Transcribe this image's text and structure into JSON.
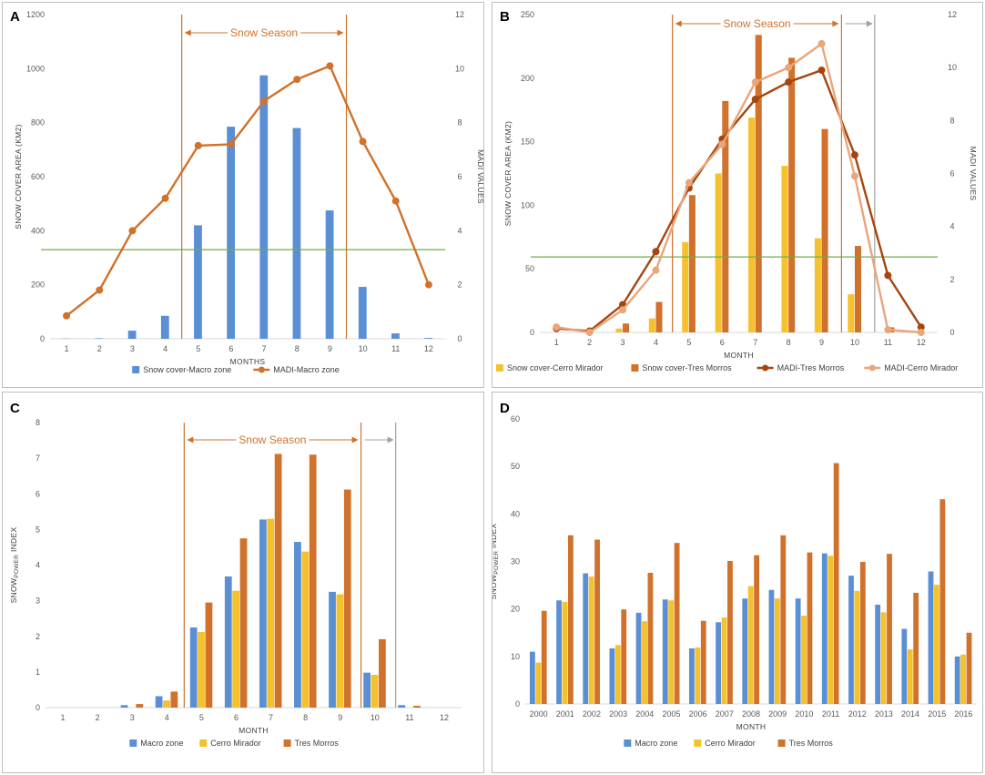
{
  "colors": {
    "macro": "#4f81bd",
    "macro_fill": "#5b8fd4",
    "cerro": "#f5c12c",
    "tres": "#d0722c",
    "madi_macro": "#d0722c",
    "madi_tres": "#a5460f",
    "madi_cerro": "#e8a67a",
    "threshold": "#70ad47",
    "season": "#d0722c",
    "grey": "#a0a0a0",
    "grid": "#e6e6e6"
  },
  "chart_data": [
    {
      "id": "A",
      "letter": "A",
      "type": "bar+line",
      "xlabel": "MONTHS",
      "ylabel": "SNOW COVER AREA (KM2)",
      "y2label": "MADI VALUES",
      "categories": [
        "1",
        "2",
        "3",
        "4",
        "5",
        "6",
        "7",
        "8",
        "9",
        "10",
        "11",
        "12"
      ],
      "ylim": [
        0,
        1200
      ],
      "yticks": [
        0,
        200,
        400,
        600,
        800,
        1000,
        1200
      ],
      "y2lim": [
        0,
        12
      ],
      "y2ticks": [
        0,
        2,
        4,
        6,
        8,
        10,
        12
      ],
      "bar_series": [
        {
          "name": "Snow cover-Macro zone",
          "color_key": "macro_fill",
          "values": [
            1,
            2,
            30,
            85,
            420,
            785,
            975,
            780,
            475,
            192,
            20,
            3
          ]
        }
      ],
      "line_series": [
        {
          "name": "MADI-Macro zone",
          "color_key": "madi_macro",
          "values": [
            0.85,
            1.8,
            4.0,
            5.2,
            7.15,
            7.2,
            8.8,
            9.6,
            10.1,
            7.3,
            5.1,
            2.0
          ]
        }
      ],
      "threshold_y2": 3.3,
      "season": {
        "label": "Snow Season",
        "start": 4.5,
        "end": 9.5,
        "extra_end": null
      },
      "legend": [
        "Snow cover-Macro zone",
        "MADI-Macro zone"
      ]
    },
    {
      "id": "B",
      "letter": "B",
      "type": "bar+line",
      "xlabel": "MONTH",
      "ylabel": "SNOW COVER AREA (KM2)",
      "y2label": "MADI VALUES",
      "categories": [
        "1",
        "2",
        "3",
        "4",
        "5",
        "6",
        "7",
        "8",
        "9",
        "10",
        "11",
        "12"
      ],
      "ylim": [
        0,
        250
      ],
      "yticks": [
        0,
        50,
        100,
        150,
        200,
        250
      ],
      "y2lim": [
        0,
        12
      ],
      "y2ticks": [
        0,
        2,
        4,
        6,
        8,
        10,
        12
      ],
      "bar_series": [
        {
          "name": "Snow cover-Cerro Mirador",
          "color_key": "cerro",
          "values": [
            0,
            0,
            3,
            11,
            71,
            125,
            169,
            131,
            74,
            30,
            0,
            0
          ]
        },
        {
          "name": "Snow cover-Tres Morros",
          "color_key": "tres",
          "values": [
            0,
            0,
            7,
            24,
            108,
            182,
            234,
            216,
            160,
            68,
            4,
            0
          ]
        }
      ],
      "line_series": [
        {
          "name": "MADI-Tres Morros",
          "color_key": "madi_tres",
          "values": [
            0.15,
            0.05,
            1.05,
            3.05,
            5.45,
            7.3,
            8.8,
            9.45,
            9.9,
            6.7,
            2.15,
            0.2
          ]
        },
        {
          "name": "MADI-Cerro Mirador",
          "color_key": "madi_cerro",
          "values": [
            0.2,
            0.0,
            0.85,
            2.35,
            5.65,
            7.1,
            9.45,
            10.0,
            10.9,
            5.9,
            0.1,
            0.0
          ]
        }
      ],
      "threshold_y2": 2.85,
      "season": {
        "label": "Snow Season",
        "start": 4.5,
        "end": 9.6,
        "extra_end": 10.6
      },
      "legend": [
        "Snow cover-Cerro Mirador",
        "Snow cover-Tres Morros",
        "MADI-Tres Morros",
        "MADI-Cerro Mirador"
      ]
    },
    {
      "id": "C",
      "letter": "C",
      "type": "bar",
      "xlabel": "MONTH",
      "ylabel": "SNOWPOWER INDEX",
      "categories": [
        "1",
        "2",
        "3",
        "4",
        "5",
        "6",
        "7",
        "8",
        "9",
        "10",
        "11",
        "12"
      ],
      "ylim": [
        0,
        8
      ],
      "yticks": [
        0,
        1,
        2,
        3,
        4,
        5,
        6,
        7,
        8
      ],
      "bar_series": [
        {
          "name": "Macro zone",
          "color_key": "macro_fill",
          "values": [
            0,
            0,
            0.07,
            0.32,
            2.25,
            3.68,
            5.28,
            4.65,
            3.25,
            0.98,
            0.07,
            0
          ]
        },
        {
          "name": "Cerro Mirador",
          "color_key": "cerro",
          "values": [
            0,
            0,
            0,
            0.2,
            2.12,
            3.28,
            5.3,
            4.38,
            3.18,
            0.92,
            0,
            0
          ]
        },
        {
          "name": "Tres Morros",
          "color_key": "tres",
          "values": [
            0,
            0,
            0.1,
            0.45,
            2.95,
            4.75,
            7.12,
            7.1,
            6.12,
            1.92,
            0.05,
            0
          ]
        }
      ],
      "season": {
        "label": "Snow Season",
        "start": 4.5,
        "end": 9.6,
        "extra_end": 10.6
      },
      "legend": [
        "Macro zone",
        "Cerro Mirador",
        "Tres Morros"
      ]
    },
    {
      "id": "D",
      "letter": "D",
      "type": "bar",
      "xlabel": "MONTH",
      "ylabel": "SNOWPOWER INDEX",
      "categories": [
        "2000",
        "2001",
        "2002",
        "2003",
        "2004",
        "2005",
        "2006",
        "2007",
        "2008",
        "2009",
        "2010",
        "2011",
        "2012",
        "2013",
        "2014",
        "2015",
        "2016"
      ],
      "ylim": [
        0,
        60
      ],
      "yticks": [
        0,
        10,
        20,
        30,
        40,
        50,
        60
      ],
      "bar_series": [
        {
          "name": "Macro zone",
          "color_key": "macro_fill",
          "values": [
            11,
            21.8,
            27.5,
            11.7,
            19.2,
            22,
            11.7,
            17.2,
            22.2,
            24,
            22.2,
            31.7,
            27,
            20.9,
            15.8,
            27.9,
            10
          ]
        },
        {
          "name": "Cerro Mirador",
          "color_key": "cerro",
          "values": [
            8.7,
            21.5,
            26.8,
            12.4,
            17.4,
            21.8,
            11.9,
            18.2,
            24.8,
            22.2,
            18.6,
            31.2,
            23.8,
            19.3,
            11.5,
            25.1,
            10.4
          ]
        },
        {
          "name": "Tres Morros",
          "color_key": "tres",
          "values": [
            19.6,
            35.5,
            34.6,
            19.9,
            27.6,
            33.9,
            17.5,
            30.1,
            31.3,
            35.5,
            31.9,
            50.7,
            29.9,
            31.6,
            23.4,
            43.1,
            15
          ]
        }
      ],
      "season": null,
      "legend": [
        "Macro zone",
        "Cerro Mirador",
        "Tres Morros"
      ]
    }
  ]
}
